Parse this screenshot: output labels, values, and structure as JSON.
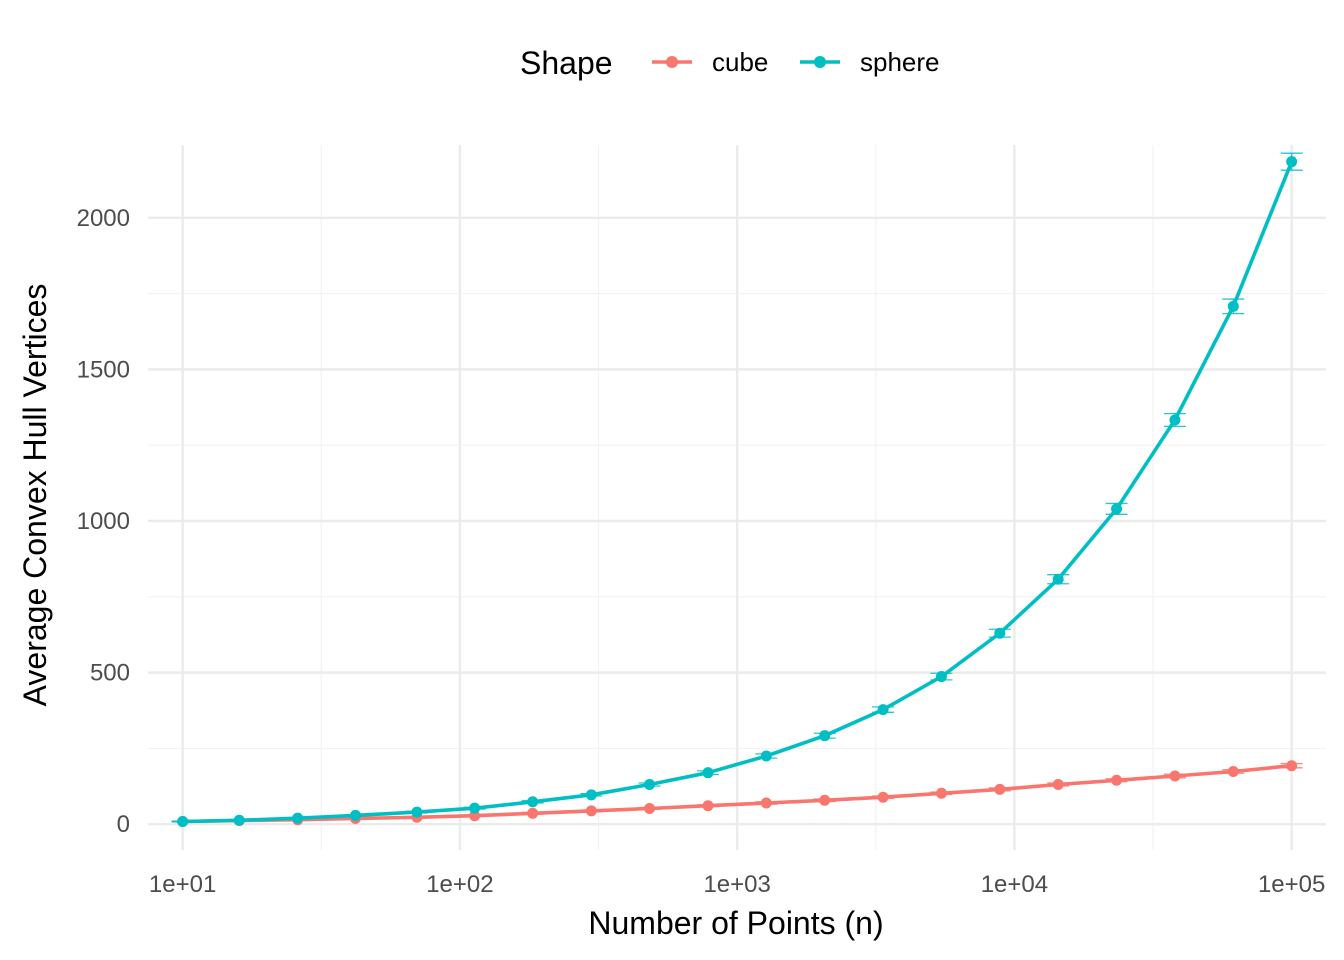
{
  "chart_data": {
    "type": "line",
    "xlabel": "Number of Points (n)",
    "ylabel": "Average Convex Hull Vertices",
    "x_scale": "log10",
    "xlim": [
      7.5,
      133000
    ],
    "ylim": [
      -85,
      2240
    ],
    "x_ticks": [
      10,
      100,
      1000,
      10000,
      100000
    ],
    "x_tick_labels": [
      "1e+01",
      "1e+02",
      "1e+03",
      "1e+04",
      "1e+05"
    ],
    "y_ticks": [
      0,
      500,
      1000,
      1500,
      2000
    ],
    "y_tick_labels": [
      "0",
      "500",
      "1000",
      "1500",
      "2000"
    ],
    "grid": true,
    "legend": {
      "title": "Shape",
      "position": "top"
    },
    "x": [
      10,
      16,
      26,
      42,
      70,
      113,
      183,
      298,
      483,
      785,
      1274,
      2069,
      3360,
      5456,
      8859,
      14384,
      23357,
      37927,
      61585,
      100000
    ],
    "series": [
      {
        "name": "cube",
        "color": "#F8766D",
        "values": [
          9,
          12,
          15,
          19,
          23,
          28,
          36,
          44,
          52,
          61,
          70,
          79,
          89,
          102,
          115,
          131,
          145,
          159,
          174,
          193
        ],
        "error": [
          1,
          1,
          1,
          2,
          2,
          2,
          3,
          3,
          3,
          3,
          4,
          4,
          4,
          4,
          5,
          5,
          5,
          6,
          6,
          7
        ]
      },
      {
        "name": "sphere",
        "color": "#00BFC4",
        "values": [
          9,
          13,
          20,
          29,
          40,
          53,
          74,
          97,
          131,
          170,
          225,
          292,
          378,
          487,
          630,
          808,
          1040,
          1333,
          1708,
          2185
        ],
        "error": [
          1,
          1,
          2,
          2,
          3,
          3,
          4,
          4,
          5,
          6,
          7,
          8,
          9,
          11,
          13,
          15,
          18,
          21,
          24,
          28
        ]
      }
    ]
  }
}
